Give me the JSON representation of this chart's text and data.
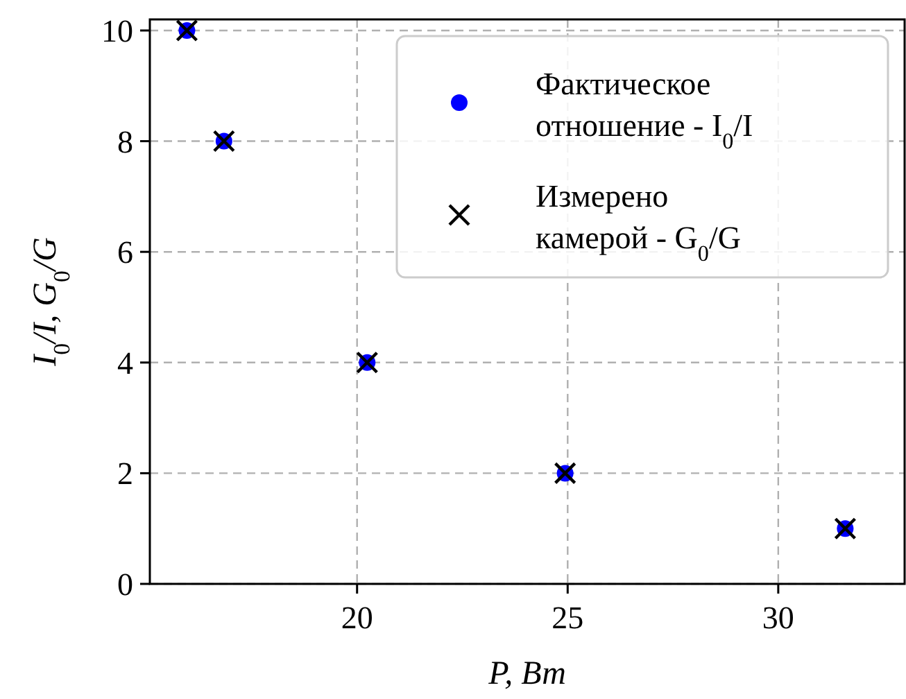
{
  "chart_data": {
    "type": "scatter",
    "xlabel": "P, Вт",
    "ylabel": "I$_{0}$/I, G$_{0}$/G",
    "x": [
      15.96,
      16.84,
      20.24,
      24.94,
      31.59
    ],
    "series": [
      {
        "name": "Фактическое отношение - I$_{0}$/I",
        "color": "#0000ff",
        "marker": "circle",
        "values": [
          10,
          8,
          4,
          2,
          1
        ]
      },
      {
        "name": "Измерено камерой - G$_{0}$/G",
        "color": "#000000",
        "marker": "cross",
        "values": [
          10,
          8,
          4,
          2,
          1
        ]
      }
    ],
    "xlim": [
      15.08,
      33
    ],
    "ylim": [
      0,
      10.2
    ],
    "xticks": [
      20,
      25,
      30
    ],
    "yticks": [
      0,
      2,
      4,
      6,
      8,
      10
    ],
    "grid": true,
    "legend": "top right"
  }
}
